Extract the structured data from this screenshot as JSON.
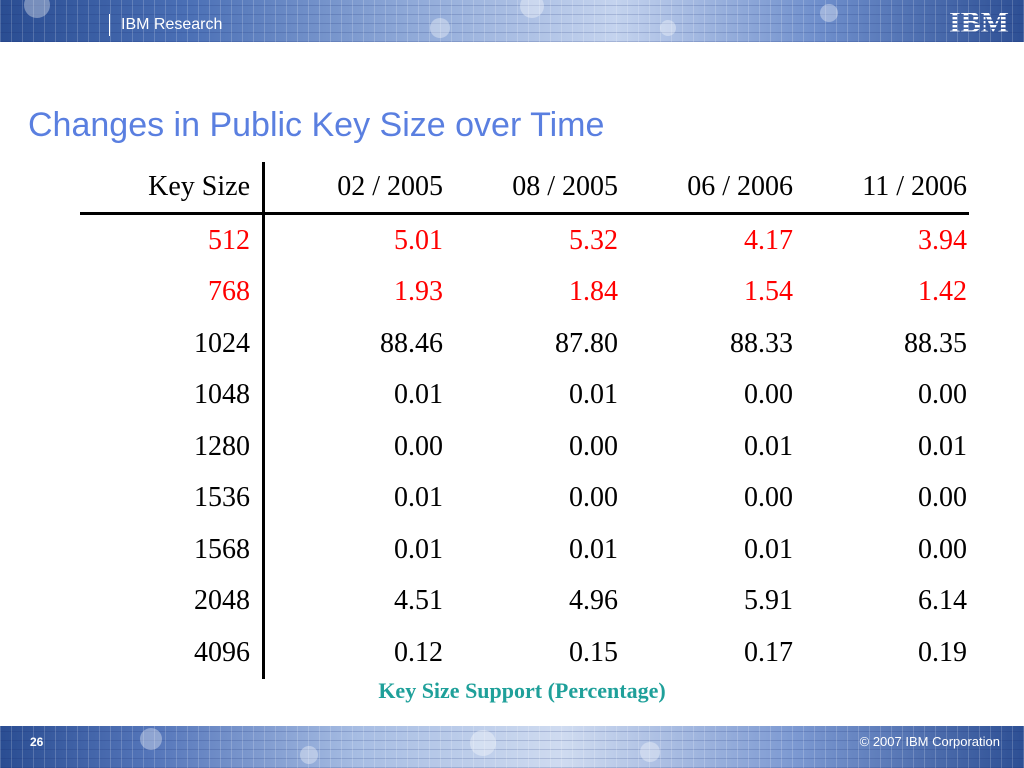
{
  "header": {
    "brand_label": "IBM Research",
    "logo_text": "IBM"
  },
  "slide": {
    "title": "Changes in Public Key Size over Time"
  },
  "table": {
    "columns": [
      "Key Size",
      "02 / 2005",
      "08 / 2005",
      "06 / 2006",
      "11 / 2006"
    ],
    "rows": [
      {
        "cells": [
          "512",
          "5.01",
          "5.32",
          "4.17",
          "3.94"
        ],
        "highlight": true
      },
      {
        "cells": [
          "768",
          "1.93",
          "1.84",
          "1.54",
          "1.42"
        ],
        "highlight": true
      },
      {
        "cells": [
          "1024",
          "88.46",
          "87.80",
          "88.33",
          "88.35"
        ],
        "highlight": false
      },
      {
        "cells": [
          "1048",
          "0.01",
          "0.01",
          "0.00",
          "0.00"
        ],
        "highlight": false
      },
      {
        "cells": [
          "1280",
          "0.00",
          "0.00",
          "0.01",
          "0.01"
        ],
        "highlight": false
      },
      {
        "cells": [
          "1536",
          "0.01",
          "0.00",
          "0.00",
          "0.00"
        ],
        "highlight": false
      },
      {
        "cells": [
          "1568",
          "0.01",
          "0.01",
          "0.01",
          "0.00"
        ],
        "highlight": false
      },
      {
        "cells": [
          "2048",
          "4.51",
          "4.96",
          "5.91",
          "6.14"
        ],
        "highlight": false
      },
      {
        "cells": [
          "4096",
          "0.12",
          "0.15",
          "0.17",
          "0.19"
        ],
        "highlight": false
      }
    ],
    "caption": "Key Size Support (Percentage)",
    "highlight_color": "#ff0000"
  },
  "footer": {
    "page_number": "26",
    "copyright": "© 2007 IBM Corporation"
  },
  "colors": {
    "title": "#5a7fe0",
    "caption": "#1fa09a",
    "band": "#2a4d92"
  }
}
